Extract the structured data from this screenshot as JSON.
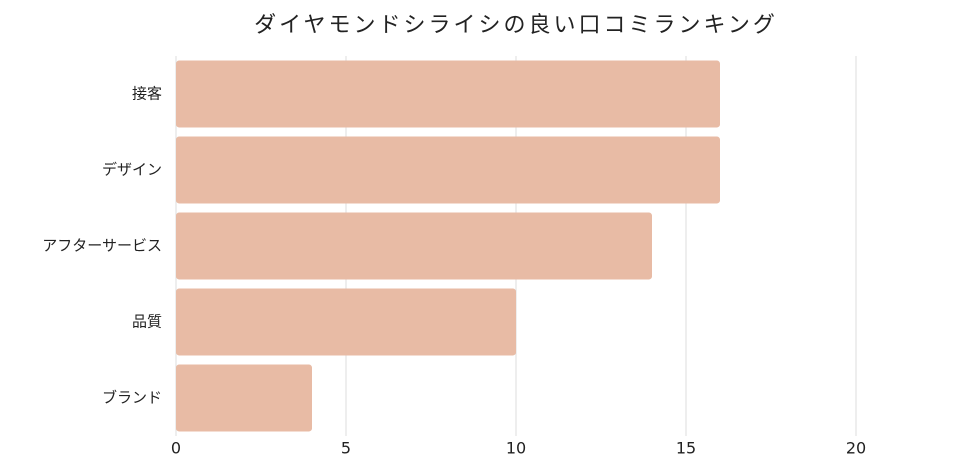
{
  "chart_data": {
    "type": "bar",
    "orientation": "horizontal",
    "title": "ダイヤモンドシライシの良い口コミランキング",
    "categories": [
      "接客",
      "デザイン",
      "アフターサービス",
      "品質",
      "ブランド"
    ],
    "values": [
      16,
      16,
      14,
      10,
      4
    ],
    "color": "#e8bba5",
    "xlim": [
      0,
      23
    ],
    "xticks": [
      0,
      5,
      10,
      15,
      20
    ],
    "grid": true
  }
}
